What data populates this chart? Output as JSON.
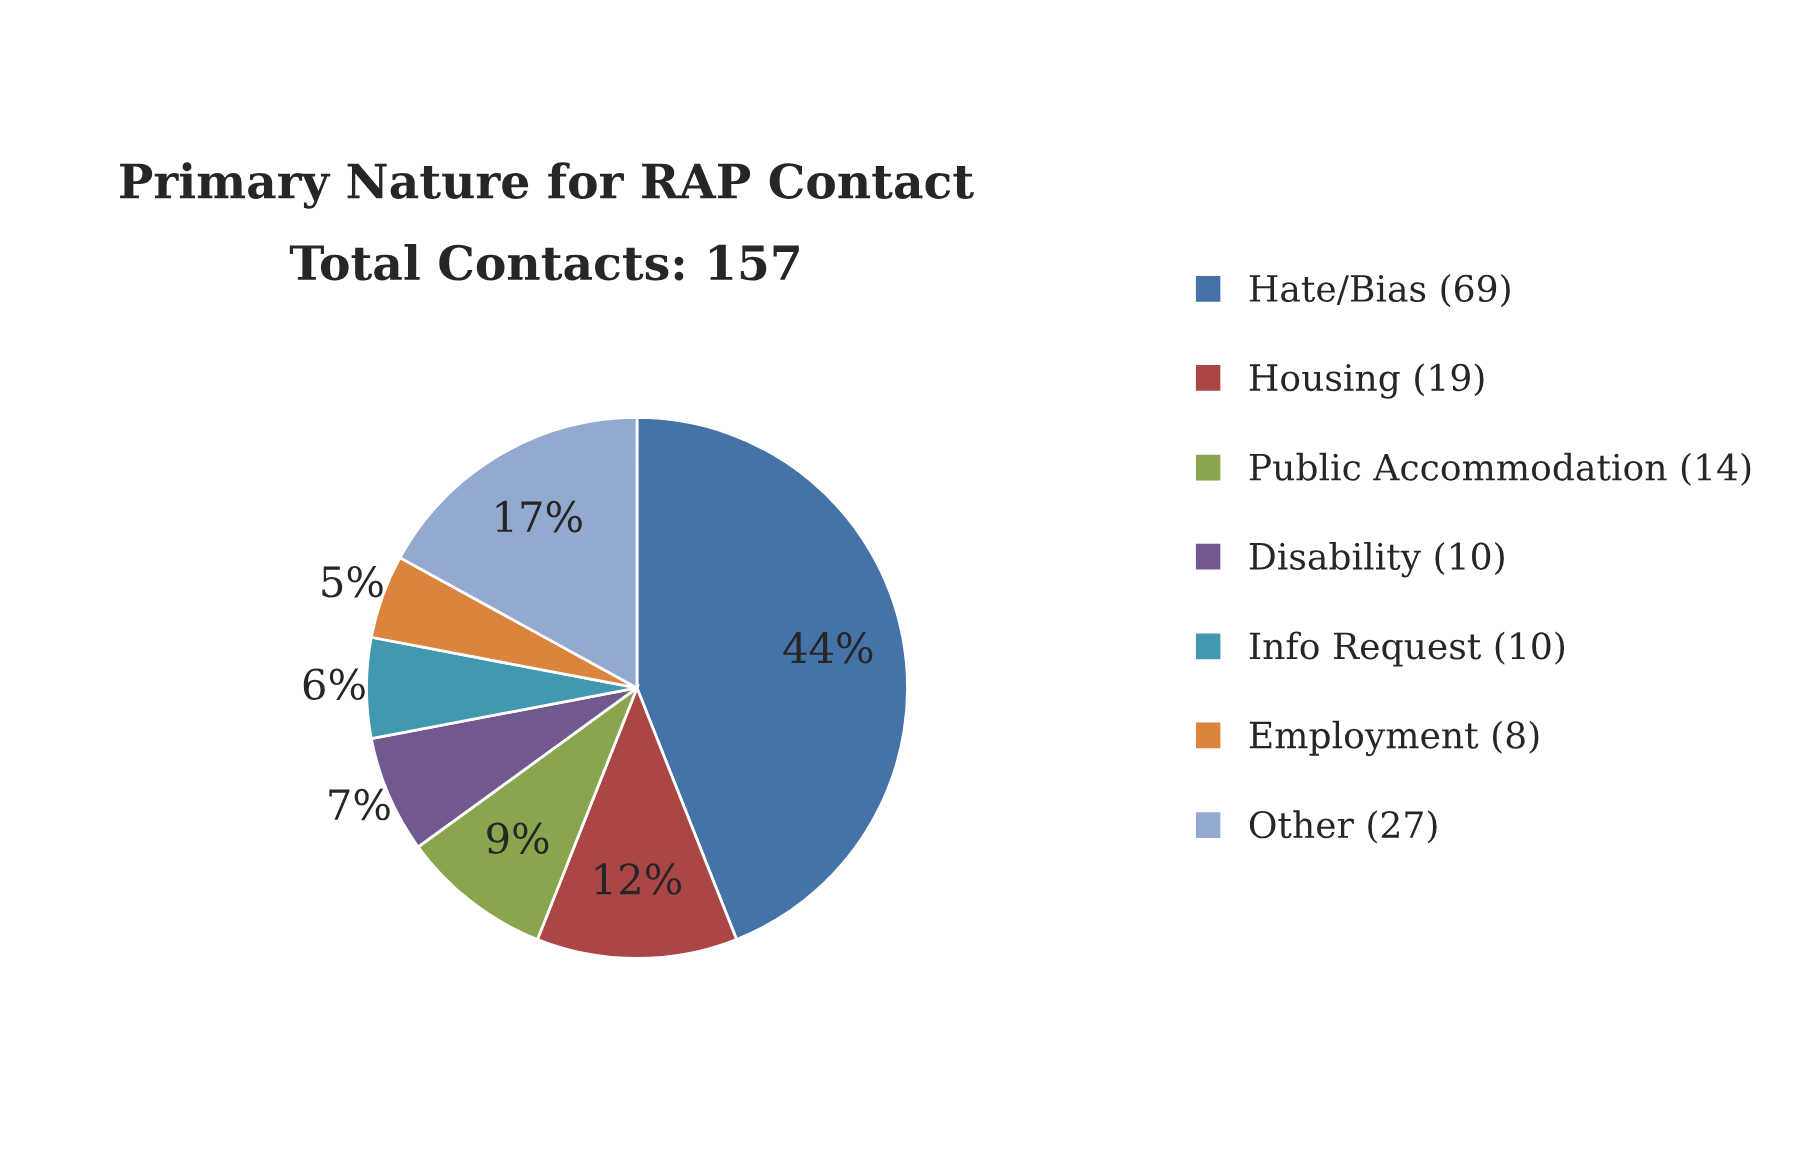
{
  "chart_data": {
    "type": "pie",
    "title": "Primary Nature for RAP Contact",
    "subtitle": "Total Contacts: 157",
    "categories": [
      "Hate/Bias (69)",
      "Housing (19)",
      "Public Accommodation (14)",
      "Disability (10)",
      "Info Request (10)",
      "Employment (8)",
      "Other (27)"
    ],
    "values": [
      44,
      12,
      9,
      7,
      6,
      5,
      17
    ],
    "colors": [
      "#4572a7",
      "#aa4643",
      "#89a54e",
      "#71588f",
      "#4198af",
      "#db843d",
      "#93a9cf"
    ],
    "value_labels": [
      "44%",
      "12%",
      "9%",
      "7%",
      "6%",
      "5%",
      "17%"
    ],
    "legend": "right"
  }
}
